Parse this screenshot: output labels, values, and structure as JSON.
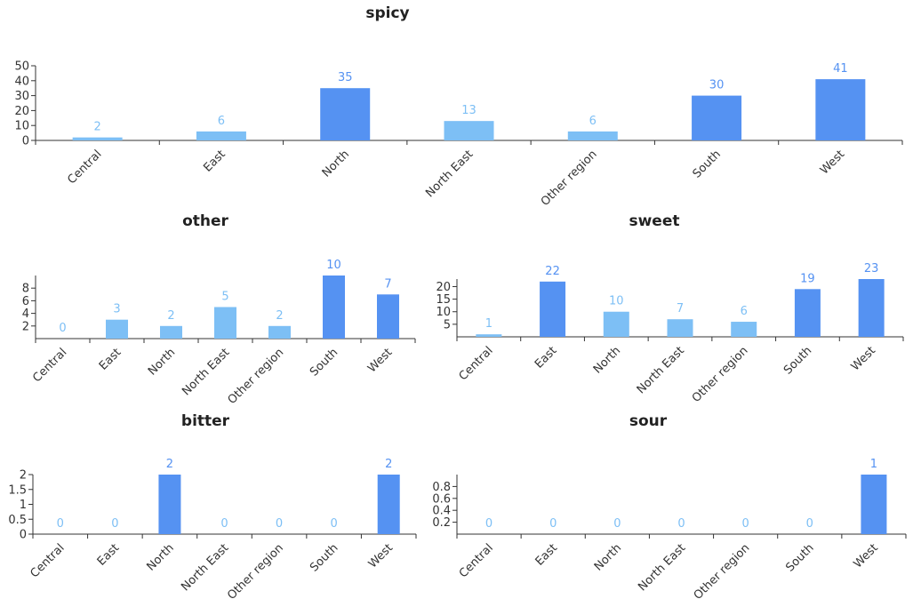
{
  "chart_data": [
    {
      "type": "bar",
      "title": "spicy",
      "categories": [
        "Central",
        "East",
        "North",
        "North East",
        "Other region",
        "South",
        "West"
      ],
      "values": [
        2,
        6,
        35,
        13,
        6,
        30,
        41
      ],
      "yticks": [
        0,
        10,
        20,
        30,
        40,
        50
      ],
      "ylim": [
        0,
        50
      ],
      "xlabel": "",
      "ylabel": "",
      "grid": false,
      "data_labels": true
    },
    {
      "type": "bar",
      "title": "other",
      "categories": [
        "Central",
        "East",
        "North",
        "North East",
        "Other region",
        "South",
        "West"
      ],
      "values": [
        0,
        3,
        2,
        5,
        2,
        10,
        7
      ],
      "yticks": [
        2,
        4,
        6,
        8
      ],
      "ylim": [
        0,
        10
      ],
      "xlabel": "",
      "ylabel": "",
      "grid": false,
      "data_labels": true
    },
    {
      "type": "bar",
      "title": "sweet",
      "categories": [
        "Central",
        "East",
        "North",
        "North East",
        "Other region",
        "South",
        "West"
      ],
      "values": [
        1,
        22,
        10,
        7,
        6,
        19,
        23
      ],
      "yticks": [
        5,
        10,
        15,
        20
      ],
      "ylim": [
        0,
        23
      ],
      "xlabel": "",
      "ylabel": "",
      "grid": false,
      "data_labels": true
    },
    {
      "type": "bar",
      "title": "bitter",
      "categories": [
        "Central",
        "East",
        "North",
        "North East",
        "Other region",
        "South",
        "West"
      ],
      "values": [
        0,
        0,
        2,
        0,
        0,
        0,
        2
      ],
      "yticks": [
        "0",
        "0.5",
        "1",
        "1.5",
        "2"
      ],
      "ylim": [
        0,
        2
      ],
      "xlabel": "",
      "ylabel": "",
      "grid": false,
      "data_labels": true
    },
    {
      "type": "bar",
      "title": "sour",
      "categories": [
        "Central",
        "East",
        "North",
        "North East",
        "Other region",
        "South",
        "West"
      ],
      "values": [
        0,
        0,
        0,
        0,
        0,
        0,
        1
      ],
      "yticks": [
        "0.2",
        "0.4",
        "0.6",
        "0.8"
      ],
      "ylim": [
        0,
        1
      ],
      "xlabel": "",
      "ylabel": "",
      "grid": false,
      "data_labels": true
    }
  ],
  "colors": {
    "low": "#7dbff5",
    "high": "#5592f2"
  }
}
